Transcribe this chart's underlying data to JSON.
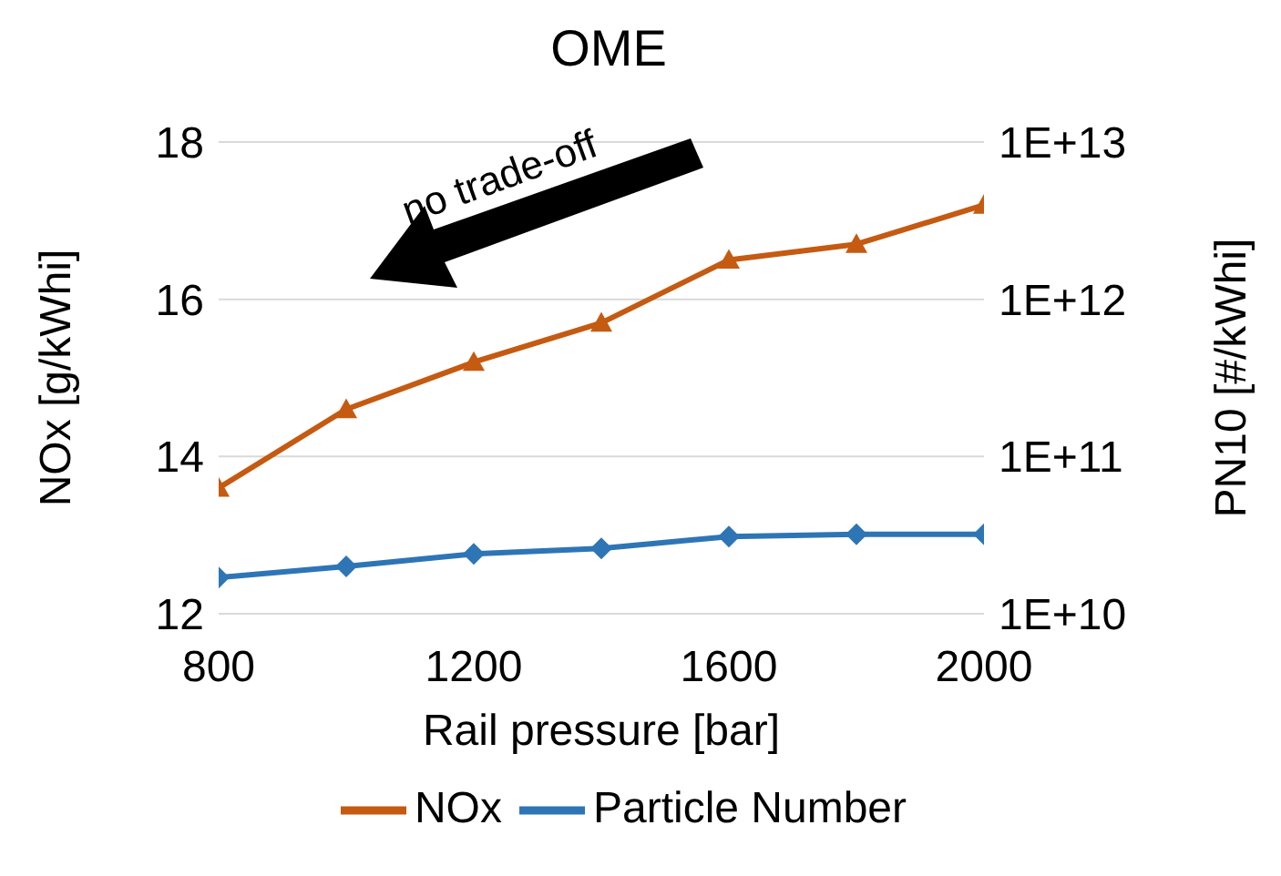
{
  "chart_data": {
    "type": "line",
    "title": "OME",
    "xlabel": "Rail pressure [bar]",
    "ylabel": "NOx [g/kWhi]",
    "y2label": "PN10 [#/kWhi]",
    "x": [
      800,
      1000,
      1200,
      1400,
      1600,
      1800,
      2000
    ],
    "series": [
      {
        "name": "NOx",
        "color": "#c55a11",
        "marker": "triangle",
        "values": [
          13.6,
          14.6,
          15.2,
          15.7,
          16.5,
          16.7,
          17.2
        ]
      },
      {
        "name": "Particle Number",
        "color": "#2e75b6",
        "marker": "diamond",
        "axis": "y2",
        "values": [
          17000000000.0,
          20000000000.0,
          24000000000.0,
          26000000000.0,
          31000000000.0,
          32000000000.0,
          32000000000.0
        ]
      }
    ],
    "xlim": [
      800,
      2000
    ],
    "xticks": [
      800,
      1200,
      1600,
      2000
    ],
    "ylim": [
      12,
      18
    ],
    "yticks": [
      12,
      14,
      16,
      18
    ],
    "y2lim": [
      10000000000.0,
      10000000000000.0
    ],
    "y2ticks": [
      {
        "value": 10000000000.0,
        "label": "1E+10"
      },
      {
        "value": 100000000000.0,
        "label": "1E+11"
      },
      {
        "value": 1000000000000.0,
        "label": "1E+12"
      },
      {
        "value": 10000000000000.0,
        "label": "1E+13"
      }
    ],
    "log": "y2",
    "grid": "y",
    "legend": "bottom",
    "line_style": "solid",
    "annotations": [
      "no trade-off"
    ]
  }
}
